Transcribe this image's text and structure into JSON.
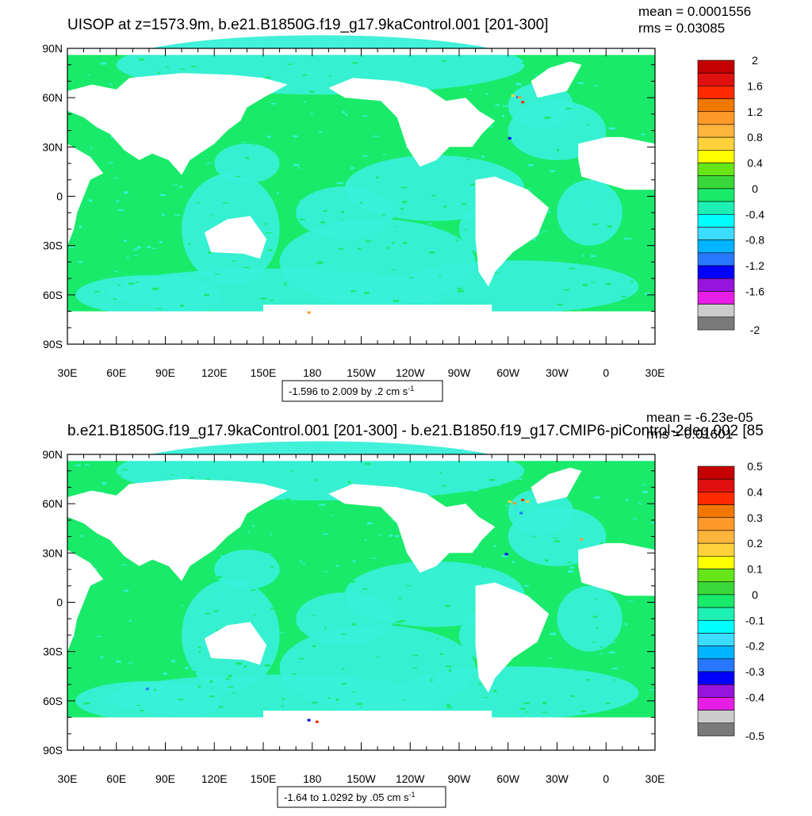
{
  "chart_data": [
    {
      "type": "heatmap",
      "title": "UISOP at z=1573.9m, b.e21.B1850G.f19_g17.9kaControl.001 [201-300]",
      "stats": {
        "mean": "mean = 0.0001556",
        "rms": "rms = 0.03085"
      },
      "x_ticks": [
        "30E",
        "60E",
        "90E",
        "120E",
        "150E",
        "180",
        "150W",
        "120W",
        "90W",
        "60W",
        "30W",
        "0",
        "30E"
      ],
      "y_ticks": [
        "90N",
        "60N",
        "30N",
        "0",
        "30S",
        "60S",
        "90S"
      ],
      "xlim": [
        30,
        390
      ],
      "ylim": [
        -90,
        90
      ],
      "colorbar": {
        "labels": [
          "2",
          "1.6",
          "1.2",
          "0.8",
          "0.4",
          "0",
          "-0.4",
          "-0.8",
          "-1.2",
          "-1.6",
          "-2"
        ],
        "min": -2,
        "max": 2,
        "step": 0.2,
        "colors": [
          "#c40000",
          "#e01010",
          "#ff2a00",
          "#f07800",
          "#ff9a2a",
          "#ffb43c",
          "#ffd23c",
          "#ffff00",
          "#66e619",
          "#38d838",
          "#1aea6a",
          "#1ef0b4",
          "#00ffff",
          "#3cdcff",
          "#00b4ff",
          "#2878ff",
          "#0000ff",
          "#9614dc",
          "#e61ee6",
          "#cccccc",
          "#7a7a7a"
        ]
      },
      "range_text": {
        "main": "-1.596 to 2.009 by .2 cm s",
        "sup": "-1"
      },
      "dominant_values": [
        {
          "value": 0.1,
          "color": "#1aea6a",
          "share": "majority"
        },
        {
          "value": -0.1,
          "color": "#38f0d8",
          "share": "minority"
        }
      ]
    },
    {
      "type": "heatmap",
      "title": "b.e21.B1850G.f19_g17.9kaControl.001 [201-300] - b.e21.B1850.f19_g17.CMIP6-piControl-2deg.002 [85",
      "stats": {
        "mean": "mean = -6.23e-05",
        "rms": "rms = 0.01601"
      },
      "x_ticks": [
        "30E",
        "60E",
        "90E",
        "120E",
        "150E",
        "180",
        "150W",
        "120W",
        "90W",
        "60W",
        "30W",
        "0",
        "30E"
      ],
      "y_ticks": [
        "90N",
        "60N",
        "30N",
        "0",
        "30S",
        "60S",
        "90S"
      ],
      "xlim": [
        30,
        390
      ],
      "ylim": [
        -90,
        90
      ],
      "colorbar": {
        "labels": [
          "0.5",
          "0.4",
          "0.3",
          "0.2",
          "0.1",
          "0",
          "-0.1",
          "-0.2",
          "-0.3",
          "-0.4",
          "-0.5"
        ],
        "min": -0.5,
        "max": 0.5,
        "step": 0.05,
        "colors": [
          "#c40000",
          "#e01010",
          "#ff2a00",
          "#f07800",
          "#ff9a2a",
          "#ffb43c",
          "#ffd23c",
          "#ffff00",
          "#66e619",
          "#38d838",
          "#1aea6a",
          "#1ef0b4",
          "#00ffff",
          "#3cdcff",
          "#00b4ff",
          "#2878ff",
          "#0000ff",
          "#9614dc",
          "#e61ee6",
          "#cccccc",
          "#7a7a7a"
        ]
      },
      "range_text": {
        "main": "-1.64 to 1.0292 by .05 cm s",
        "sup": "-1"
      },
      "dominant_values": [
        {
          "value": 0.025,
          "color": "#1aea6a",
          "share": "majority"
        },
        {
          "value": -0.025,
          "color": "#38f0d8",
          "share": "minority"
        }
      ]
    }
  ],
  "colors": {
    "ocean_base": "#1aea6a",
    "ocean_secondary": "#38f0d8",
    "land": "#ffffff",
    "frame": "#000000"
  }
}
